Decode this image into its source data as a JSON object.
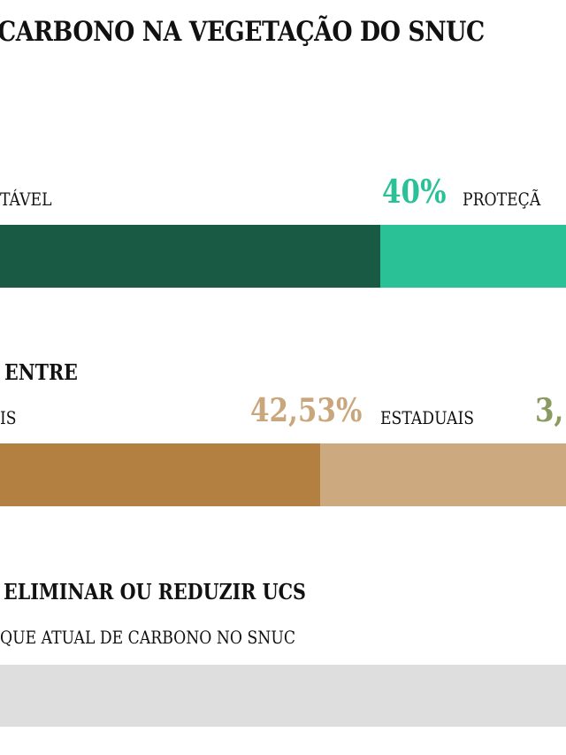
{
  "title": "CARBONO NA VEGETAÇÃO DO SNUC",
  "chart_data": [
    {
      "type": "bar",
      "orientation": "horizontal-stacked",
      "labels": [
        "TÁVEL",
        "PROTEÇÃ"
      ],
      "printed_values": {
        "protecao": "40%"
      },
      "colors": [
        "#185a44",
        "#2bc197"
      ]
    },
    {
      "type": "bar",
      "orientation": "horizontal-stacked",
      "heading": "ENTRE",
      "labels": [
        "IS",
        "ESTADUAIS"
      ],
      "printed_values": {
        "estaduais": "42,53%",
        "next": "3,"
      },
      "colors": [
        "#b48042",
        "#cca97f",
        "#8a9a60"
      ]
    },
    {
      "type": "bar",
      "heading": "ELIMINAR OU REDUZIR UCS",
      "label": "QUE ATUAL DE CARBONO NO SNUC",
      "colors": [
        "#dedede"
      ]
    }
  ]
}
